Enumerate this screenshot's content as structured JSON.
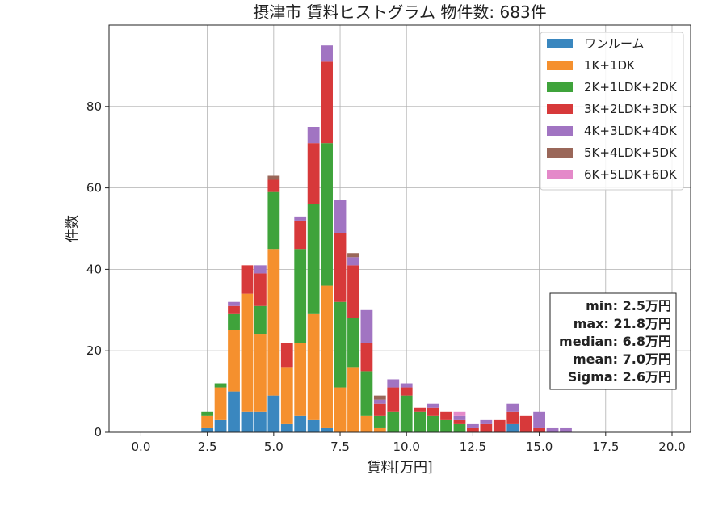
{
  "chart_data": {
    "type": "bar",
    "stacked": true,
    "title": "摂津市 賃料ヒストグラム 物件数: 683件",
    "xlabel": "賃料[万円]",
    "ylabel": "件数",
    "xlim": [
      -1.2,
      20.7
    ],
    "ylim": [
      0,
      100
    ],
    "bin_width": 0.5,
    "xticks": [
      0.0,
      2.5,
      5.0,
      7.5,
      10.0,
      12.5,
      15.0,
      17.5,
      20.0
    ],
    "xtick_labels": [
      "0.0",
      "2.5",
      "5.0",
      "7.5",
      "10.0",
      "12.5",
      "15.0",
      "17.5",
      "20.0"
    ],
    "yticks": [
      0,
      20,
      40,
      60,
      80
    ],
    "ytick_labels": [
      "0",
      "20",
      "40",
      "60",
      "80"
    ],
    "grid": true,
    "legend_position": "top-right",
    "bins": [
      2.5,
      3.0,
      3.5,
      4.0,
      4.5,
      5.0,
      5.5,
      6.0,
      6.5,
      7.0,
      7.5,
      8.0,
      8.5,
      9.0,
      9.5,
      10.0,
      10.5,
      11.0,
      11.5,
      12.0,
      12.5,
      13.0,
      13.5,
      14.0,
      14.5,
      15.0,
      15.5,
      16.0
    ],
    "series": [
      {
        "name": "ワンルーム",
        "color": "#3a87bf",
        "values": [
          1,
          3,
          10,
          5,
          5,
          9,
          2,
          4,
          3,
          1,
          0,
          0,
          0,
          0,
          0,
          0,
          0,
          0,
          0,
          0,
          0,
          0,
          0,
          2,
          0,
          0,
          0,
          0
        ]
      },
      {
        "name": "1K+1DK",
        "color": "#f5902e",
        "values": [
          3,
          8,
          15,
          29,
          19,
          36,
          14,
          18,
          26,
          35,
          11,
          16,
          4,
          1,
          0,
          0,
          0,
          0,
          0,
          0,
          0,
          0,
          0,
          0,
          0,
          0,
          0,
          0
        ]
      },
      {
        "name": "2K+1LDK+2DK",
        "color": "#3fa33b",
        "values": [
          1,
          1,
          4,
          0,
          7,
          14,
          0,
          23,
          27,
          35,
          21,
          12,
          11,
          3,
          5,
          9,
          5,
          4,
          3,
          2,
          0,
          0,
          0,
          0,
          0,
          0,
          0,
          0
        ]
      },
      {
        "name": "3K+2LDK+3DK",
        "color": "#d7393a",
        "values": [
          0,
          0,
          2,
          7,
          8,
          3,
          6,
          7,
          15,
          20,
          17,
          13,
          7,
          3,
          6,
          2,
          1,
          2,
          2,
          1,
          1,
          2,
          3,
          3,
          4,
          1,
          0,
          0
        ]
      },
      {
        "name": "4K+3LDK+4DK",
        "color": "#a174c2",
        "values": [
          0,
          0,
          1,
          0,
          2,
          0,
          0,
          1,
          4,
          4,
          8,
          2,
          8,
          1,
          2,
          1,
          0,
          1,
          0,
          1,
          1,
          1,
          0,
          2,
          0,
          4,
          1,
          1
        ]
      },
      {
        "name": "5K+4LDK+5DK",
        "color": "#9a6759",
        "values": [
          0,
          0,
          0,
          0,
          0,
          1,
          0,
          0,
          0,
          0,
          0,
          1,
          0,
          1,
          0,
          0,
          0,
          0,
          0,
          0,
          0,
          0,
          0,
          0,
          0,
          0,
          0,
          0
        ]
      },
      {
        "name": "6K+5LDK+6DK",
        "color": "#e489c9",
        "values": [
          0,
          0,
          0,
          0,
          0,
          0,
          0,
          0,
          0,
          0,
          0,
          0,
          0,
          0,
          0,
          0,
          0,
          0,
          0,
          1,
          0,
          0,
          0,
          0,
          0,
          0,
          0,
          0
        ]
      }
    ],
    "stats": [
      "min: 2.5万円",
      "max: 21.8万円",
      "median: 6.8万円",
      "mean: 7.0万円",
      "Sigma: 2.6万円"
    ]
  }
}
